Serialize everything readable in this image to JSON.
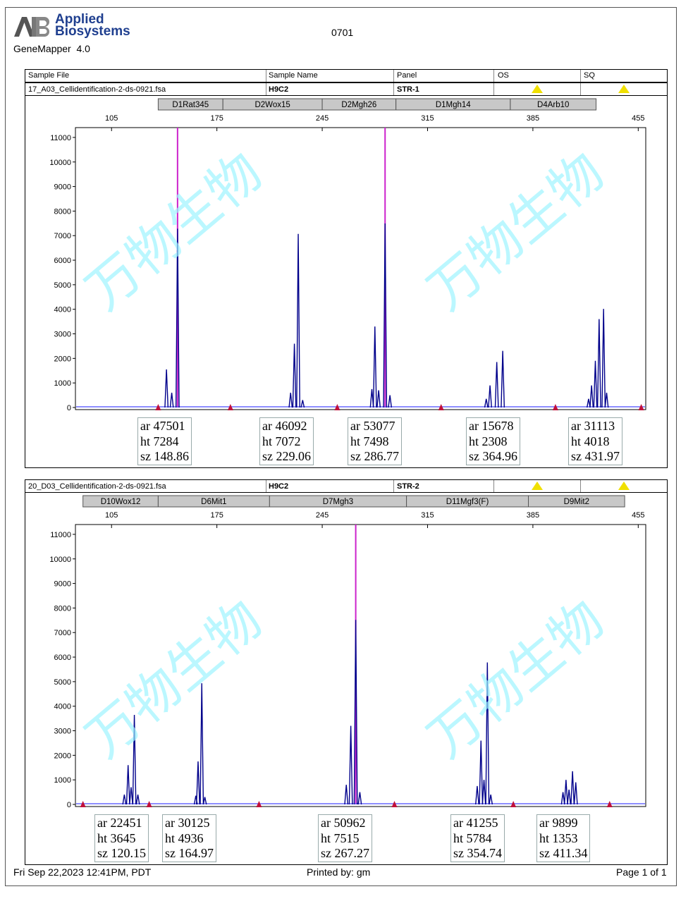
{
  "header": {
    "logo_letters": "AB",
    "brand_line1": "Applied",
    "brand_line2": "Biosystems",
    "app_title": "GeneMapper  4.0",
    "run_id": "0701"
  },
  "columns": {
    "sample_file": "Sample File",
    "sample_name": "Sample Name",
    "panel": "Panel",
    "os": "OS",
    "sq": "SQ"
  },
  "watermark": "万物生物",
  "panels": [
    {
      "sample_file": "17_A03_Cellidentification-2-ds-0921.fsa",
      "sample_name": "H9C2",
      "panel": "STR-1",
      "markers": [
        "D1Rat345",
        "D2Wox15",
        "D2Mgh26",
        "D1Mgh14",
        "D4Arb10"
      ],
      "labels": [
        {
          "ar": "ar 47501",
          "ht": "ht 7284",
          "sz": "sz 148.86"
        },
        {
          "ar": "ar 46092",
          "ht": "ht 7072",
          "sz": "sz 229.06"
        },
        {
          "ar": "ar 53077",
          "ht": "ht 7498",
          "sz": "sz 286.77"
        },
        {
          "ar": "ar 15678",
          "ht": "ht 2308",
          "sz": "sz 364.96"
        },
        {
          "ar": "ar 31113",
          "ht": "ht 4018",
          "sz": "sz 431.97"
        }
      ]
    },
    {
      "sample_file": "20_D03_Cellidentification-2-ds-0921.fsa",
      "sample_name": "H9C2",
      "panel": "STR-2",
      "markers": [
        "D10Wox12",
        "D6Mit1",
        "D7Mgh3",
        "D11Mgf3(F)",
        "D9Mit2"
      ],
      "labels": [
        {
          "ar": "ar 22451",
          "ht": "ht 3645",
          "sz": "sz 120.15"
        },
        {
          "ar": "ar 30125",
          "ht": "ht 4936",
          "sz": "sz 164.97"
        },
        {
          "ar": "ar 50962",
          "ht": "ht 7515",
          "sz": "sz 267.27"
        },
        {
          "ar": "ar 41255",
          "ht": "ht 5784",
          "sz": "sz 354.74"
        },
        {
          "ar": "ar 9899",
          "ht": "ht 1353",
          "sz": "sz 411.34"
        }
      ]
    }
  ],
  "footer": {
    "date": "Fri Sep 22,2023 12:41PM, PDT",
    "printed_by": "Printed by: gm",
    "page": "Page 1 of 1"
  },
  "colors": {
    "trace": "#00008b",
    "baseline": "#4a4aff",
    "cursor": "#cc22cc",
    "bin_marker": "#c0103a",
    "warning": "#f0e000"
  },
  "chart_data": [
    {
      "type": "line",
      "title": "",
      "xlabel": "",
      "ylabel": "",
      "x_ticks": [
        105,
        175,
        245,
        315,
        385,
        455
      ],
      "y_ticks": [
        0,
        1000,
        2000,
        3000,
        4000,
        5000,
        6000,
        7000,
        8000,
        9000,
        10000,
        11000
      ],
      "xlim": [
        81,
        460
      ],
      "ylim": [
        0,
        11400
      ],
      "grid": false,
      "marker_ranges": [
        [
          136,
          179
        ],
        [
          179,
          245
        ],
        [
          245,
          294
        ],
        [
          294,
          370
        ],
        [
          370,
          427
        ]
      ],
      "bin_markers": [
        136,
        184,
        255,
        324,
        400,
        457
      ],
      "highlight_sizes": [
        148.86,
        286.77
      ],
      "peaks": [
        {
          "size": 141.5,
          "height": 1550
        },
        {
          "size": 145.0,
          "height": 600
        },
        {
          "size": 148.86,
          "height": 7284
        },
        {
          "size": 224.0,
          "height": 600
        },
        {
          "size": 226.5,
          "height": 2600
        },
        {
          "size": 229.06,
          "height": 7072
        },
        {
          "size": 232.0,
          "height": 300
        },
        {
          "size": 278.0,
          "height": 750
        },
        {
          "size": 280.0,
          "height": 3300
        },
        {
          "size": 282.5,
          "height": 700
        },
        {
          "size": 286.77,
          "height": 7498
        },
        {
          "size": 290.0,
          "height": 500
        },
        {
          "size": 354.0,
          "height": 350
        },
        {
          "size": 356.5,
          "height": 900
        },
        {
          "size": 361.0,
          "height": 1850
        },
        {
          "size": 364.96,
          "height": 2308
        },
        {
          "size": 422.0,
          "height": 350
        },
        {
          "size": 424.0,
          "height": 900
        },
        {
          "size": 426.5,
          "height": 1900
        },
        {
          "size": 429.0,
          "height": 3600
        },
        {
          "size": 431.97,
          "height": 4018
        },
        {
          "size": 434.0,
          "height": 600
        }
      ]
    },
    {
      "type": "line",
      "title": "",
      "xlabel": "",
      "ylabel": "",
      "x_ticks": [
        105,
        175,
        245,
        315,
        385,
        455
      ],
      "y_ticks": [
        0,
        1000,
        2000,
        3000,
        4000,
        5000,
        6000,
        7000,
        8000,
        9000,
        10000,
        11000
      ],
      "xlim": [
        81,
        460
      ],
      "ylim": [
        0,
        11400
      ],
      "grid": false,
      "marker_ranges": [
        [
          86,
          136
        ],
        [
          136,
          210
        ],
        [
          210,
          301
        ],
        [
          301,
          382
        ],
        [
          382,
          446
        ]
      ],
      "bin_markers": [
        86,
        130,
        203,
        293,
        372,
        436
      ],
      "highlight_sizes": [
        267.27
      ],
      "peaks": [
        {
          "size": 113.5,
          "height": 400
        },
        {
          "size": 116.0,
          "height": 1600
        },
        {
          "size": 118.0,
          "height": 700
        },
        {
          "size": 120.15,
          "height": 3645
        },
        {
          "size": 122.5,
          "height": 400
        },
        {
          "size": 161.0,
          "height": 350
        },
        {
          "size": 162.5,
          "height": 1750
        },
        {
          "size": 164.97,
          "height": 4936
        },
        {
          "size": 167.0,
          "height": 300
        },
        {
          "size": 261.0,
          "height": 800
        },
        {
          "size": 264.0,
          "height": 3200
        },
        {
          "size": 267.27,
          "height": 7515
        },
        {
          "size": 270.0,
          "height": 500
        },
        {
          "size": 348.0,
          "height": 750
        },
        {
          "size": 350.5,
          "height": 2600
        },
        {
          "size": 352.5,
          "height": 1000
        },
        {
          "size": 354.74,
          "height": 5784
        },
        {
          "size": 357.0,
          "height": 400
        },
        {
          "size": 405.0,
          "height": 500
        },
        {
          "size": 407.0,
          "height": 1000
        },
        {
          "size": 409.0,
          "height": 600
        },
        {
          "size": 411.34,
          "height": 1353
        },
        {
          "size": 413.5,
          "height": 900
        }
      ]
    }
  ]
}
